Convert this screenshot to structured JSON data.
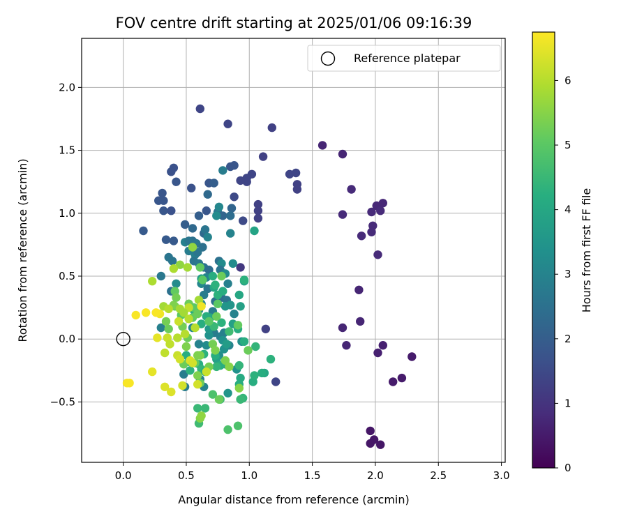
{
  "chart_data": {
    "type": "scatter",
    "title": "FOV centre drift starting at 2025/01/06 09:16:39",
    "xlabel": "Angular distance from reference (arcmin)",
    "ylabel": "Rotation from reference (arcmin)",
    "xlim": [
      -0.33,
      3.03
    ],
    "ylim": [
      -0.98,
      2.39
    ],
    "xticks": [
      0.0,
      0.5,
      1.0,
      1.5,
      2.0,
      2.5,
      3.0
    ],
    "xtick_labels": [
      "0.0",
      "0.5",
      "1.0",
      "1.5",
      "2.0",
      "2.5",
      "3.0"
    ],
    "yticks": [
      -0.5,
      0.0,
      0.5,
      1.0,
      1.5,
      2.0
    ],
    "ytick_labels": [
      "−0.5",
      "0.0",
      "0.5",
      "1.0",
      "1.5",
      "2.0"
    ],
    "grid": true,
    "legend": {
      "location": "upper right",
      "entries": [
        "Reference platepar"
      ]
    },
    "reference_point": {
      "x": 0.0,
      "y": 0.0,
      "label": "Reference platepar"
    },
    "colormap": "viridis",
    "colorbar": {
      "label": "Hours from first FF file",
      "range": [
        0,
        6.75
      ],
      "ticks": [
        0,
        1,
        2,
        3,
        4,
        5,
        6
      ],
      "tick_labels": [
        "0",
        "1",
        "2",
        "3",
        "4",
        "5",
        "6"
      ]
    },
    "points": [
      [
        1.58,
        1.54,
        0.7
      ],
      [
        1.74,
        1.47,
        0.7
      ],
      [
        1.81,
        1.19,
        0.8
      ],
      [
        1.74,
        0.99,
        0.8
      ],
      [
        1.97,
        1.01,
        0.8
      ],
      [
        2.01,
        1.06,
        0.75
      ],
      [
        2.04,
        1.02,
        0.8
      ],
      [
        2.06,
        1.08,
        0.75
      ],
      [
        1.98,
        0.9,
        0.8
      ],
      [
        1.97,
        0.85,
        0.8
      ],
      [
        1.89,
        0.82,
        0.8
      ],
      [
        2.02,
        0.67,
        0.8
      ],
      [
        1.87,
        0.39,
        0.7
      ],
      [
        1.88,
        0.14,
        0.7
      ],
      [
        1.74,
        0.09,
        0.7
      ],
      [
        1.77,
        -0.05,
        0.7
      ],
      [
        2.06,
        -0.05,
        0.6
      ],
      [
        2.02,
        -0.11,
        0.6
      ],
      [
        2.29,
        -0.14,
        0.5
      ],
      [
        2.21,
        -0.31,
        0.5
      ],
      [
        2.14,
        -0.34,
        0.5
      ],
      [
        1.96,
        -0.73,
        0.4
      ],
      [
        1.99,
        -0.8,
        0.4
      ],
      [
        1.96,
        -0.83,
        0.4
      ],
      [
        2.04,
        -0.84,
        0.4
      ],
      [
        0.61,
        1.83,
        1.4
      ],
      [
        0.83,
        1.71,
        1.4
      ],
      [
        1.18,
        1.68,
        1.3
      ],
      [
        1.11,
        1.45,
        1.3
      ],
      [
        1.37,
        1.32,
        1.4
      ],
      [
        1.32,
        1.31,
        1.4
      ],
      [
        1.38,
        1.23,
        1.3
      ],
      [
        1.38,
        1.19,
        1.3
      ],
      [
        1.02,
        1.31,
        1.4
      ],
      [
        0.98,
        1.28,
        1.4
      ],
      [
        0.98,
        1.25,
        1.4
      ],
      [
        0.93,
        1.26,
        1.4
      ],
      [
        1.07,
        1.07,
        1.3
      ],
      [
        1.07,
        1.02,
        1.3
      ],
      [
        1.07,
        0.96,
        1.3
      ],
      [
        0.95,
        0.94,
        1.5
      ],
      [
        0.88,
        1.13,
        1.5
      ],
      [
        0.93,
        0.57,
        1.1
      ],
      [
        1.13,
        0.08,
        1.3
      ],
      [
        1.21,
        -0.34,
        1.4
      ],
      [
        0.88,
        1.38,
        1.8
      ],
      [
        0.85,
        1.37,
        1.8
      ],
      [
        0.4,
        1.36,
        1.7
      ],
      [
        0.38,
        1.33,
        1.7
      ],
      [
        0.42,
        1.25,
        1.8
      ],
      [
        0.31,
        1.16,
        1.8
      ],
      [
        0.28,
        1.1,
        1.8
      ],
      [
        0.32,
        1.1,
        1.8
      ],
      [
        0.32,
        1.02,
        1.8
      ],
      [
        0.38,
        1.02,
        1.7
      ],
      [
        0.16,
        0.86,
        1.9
      ],
      [
        0.34,
        0.79,
        1.9
      ],
      [
        0.4,
        0.78,
        1.9
      ],
      [
        0.49,
        0.91,
        2.0
      ],
      [
        0.54,
        1.2,
        1.7
      ],
      [
        0.68,
        1.24,
        1.8
      ],
      [
        0.72,
        1.24,
        2.0
      ],
      [
        0.67,
        1.15,
        2.3
      ],
      [
        0.66,
        1.02,
        1.8
      ],
      [
        0.6,
        0.98,
        2.0
      ],
      [
        0.55,
        0.88,
        2.3
      ],
      [
        0.75,
        1.01,
        2.6
      ],
      [
        0.86,
        1.04,
        2.2
      ],
      [
        0.79,
        0.98,
        2.2
      ],
      [
        0.85,
        0.98,
        2.4
      ],
      [
        0.79,
        1.34,
        2.8
      ],
      [
        0.64,
        0.84,
        2.3
      ],
      [
        0.65,
        0.87,
        2.6
      ],
      [
        0.74,
        0.98,
        3.2
      ],
      [
        0.55,
        0.78,
        2.5
      ],
      [
        0.49,
        0.77,
        2.9
      ],
      [
        0.52,
        0.78,
        2.6
      ],
      [
        0.58,
        0.76,
        2.6
      ],
      [
        0.63,
        0.73,
        2.5
      ],
      [
        0.67,
        0.81,
        3.0
      ],
      [
        0.76,
        1.05,
        3.1
      ],
      [
        0.85,
        0.84,
        3.0
      ],
      [
        0.36,
        0.65,
        2.6
      ],
      [
        0.39,
        0.62,
        2.6
      ],
      [
        0.3,
        0.5,
        2.7
      ],
      [
        0.52,
        0.7,
        2.8
      ],
      [
        0.57,
        0.67,
        2.9
      ],
      [
        0.59,
        0.69,
        2.6
      ],
      [
        0.56,
        0.62,
        2.6
      ],
      [
        0.6,
        0.6,
        2.7
      ],
      [
        0.64,
        0.57,
        2.6
      ],
      [
        0.76,
        0.62,
        2.5
      ],
      [
        0.78,
        0.6,
        3.2
      ],
      [
        0.77,
        0.55,
        2.6
      ],
      [
        0.68,
        0.55,
        2.4
      ],
      [
        0.38,
        0.38,
        2.5
      ],
      [
        0.42,
        0.44,
        3.2
      ],
      [
        0.62,
        0.44,
        3.1
      ],
      [
        0.66,
        0.49,
        3.0
      ],
      [
        0.81,
        0.52,
        3.2
      ],
      [
        0.87,
        0.6,
        3.2
      ],
      [
        0.83,
        0.44,
        2.9
      ],
      [
        0.67,
        0.4,
        2.6
      ],
      [
        0.64,
        0.35,
        2.8
      ],
      [
        0.73,
        0.3,
        2.5
      ],
      [
        0.78,
        0.33,
        2.4
      ],
      [
        0.82,
        0.31,
        2.6
      ],
      [
        0.62,
        0.28,
        3.1
      ],
      [
        0.71,
        0.22,
        2.8
      ],
      [
        0.81,
        0.26,
        3.5
      ],
      [
        0.85,
        0.27,
        3.5
      ],
      [
        0.88,
        0.2,
        3.0
      ],
      [
        0.6,
        0.23,
        3.2
      ],
      [
        0.55,
        0.09,
        3.1
      ],
      [
        0.72,
        0.05,
        2.8
      ],
      [
        0.77,
        0.02,
        2.9
      ],
      [
        0.8,
        0.05,
        2.9
      ],
      [
        0.3,
        0.09,
        2.9
      ],
      [
        0.6,
        -0.04,
        3.0
      ],
      [
        0.66,
        -0.05,
        3.2
      ],
      [
        0.68,
        0.03,
        3.4
      ],
      [
        0.79,
        -0.01,
        3.4
      ],
      [
        0.84,
        -0.05,
        3.0
      ],
      [
        0.8,
        -0.08,
        3.4
      ],
      [
        0.94,
        -0.02,
        3.3
      ],
      [
        0.76,
        -0.13,
        3.3
      ],
      [
        0.48,
        -0.28,
        2.8
      ],
      [
        0.49,
        -0.38,
        2.8
      ],
      [
        0.61,
        -0.32,
        2.9
      ],
      [
        0.64,
        -0.38,
        3.0
      ],
      [
        0.83,
        -0.43,
        3.5
      ],
      [
        0.81,
        -0.2,
        3.5
      ],
      [
        0.9,
        -0.24,
        3.4
      ],
      [
        0.93,
        0.26,
        3.8
      ],
      [
        0.96,
        0.46,
        3.8
      ],
      [
        1.04,
        0.86,
        3.9
      ],
      [
        0.92,
        0.35,
        4.0
      ],
      [
        0.62,
        0.48,
        3.8
      ],
      [
        0.72,
        0.41,
        4.0
      ],
      [
        0.71,
        0.5,
        4.2
      ],
      [
        0.73,
        0.43,
        4.3
      ],
      [
        0.75,
        0.35,
        4.3
      ],
      [
        0.79,
        0.38,
        4.2
      ],
      [
        0.96,
        0.47,
        4.3
      ],
      [
        0.68,
        0.08,
        3.6
      ],
      [
        0.69,
        0.17,
        4.0
      ],
      [
        0.78,
        0.13,
        4.3
      ],
      [
        0.87,
        0.12,
        3.8
      ],
      [
        0.66,
        0.18,
        4.2
      ],
      [
        0.56,
        0.23,
        4.2
      ],
      [
        0.62,
        0.12,
        4.2
      ],
      [
        0.72,
        0.1,
        4.5
      ],
      [
        0.82,
        -0.04,
        3.7
      ],
      [
        0.74,
        -0.16,
        3.8
      ],
      [
        0.77,
        -0.21,
        4.2
      ],
      [
        0.74,
        -0.22,
        4.4
      ],
      [
        0.64,
        -0.12,
        4.3
      ],
      [
        0.73,
        -0.13,
        4.2
      ],
      [
        0.6,
        -0.2,
        4.2
      ],
      [
        0.62,
        -0.24,
        4.4
      ],
      [
        0.65,
        -0.26,
        4.1
      ],
      [
        0.5,
        -0.13,
        4.2
      ],
      [
        0.53,
        -0.25,
        4.3
      ],
      [
        0.52,
        -0.18,
        4.4
      ],
      [
        0.93,
        -0.31,
        4.1
      ],
      [
        0.92,
        -0.36,
        4.2
      ],
      [
        1.03,
        -0.34,
        4.2
      ],
      [
        1.04,
        -0.29,
        4.3
      ],
      [
        1.12,
        -0.27,
        4.0
      ],
      [
        1.1,
        -0.27,
        4.2
      ],
      [
        1.17,
        -0.16,
        4.3
      ],
      [
        1.05,
        -0.06,
        4.4
      ],
      [
        0.96,
        -0.02,
        4.2
      ],
      [
        0.91,
        0.08,
        4.2
      ],
      [
        0.84,
        0.06,
        4.6
      ],
      [
        0.92,
        -0.21,
        4.4
      ],
      [
        0.95,
        -0.47,
        4.4
      ],
      [
        0.93,
        -0.48,
        4.5
      ],
      [
        0.77,
        -0.48,
        4.6
      ],
      [
        0.59,
        -0.55,
        4.5
      ],
      [
        0.65,
        -0.55,
        4.5
      ],
      [
        0.6,
        -0.67,
        4.6
      ],
      [
        0.71,
        -0.44,
        4.8
      ],
      [
        0.83,
        -0.72,
        4.8
      ],
      [
        0.91,
        -0.69,
        4.8
      ],
      [
        0.41,
        0.38,
        5.1
      ],
      [
        0.41,
        0.26,
        5.2
      ],
      [
        0.46,
        0.19,
        5.0
      ],
      [
        0.52,
        0.28,
        5.2
      ],
      [
        0.56,
        0.25,
        5.0
      ],
      [
        0.61,
        0.57,
        5.1
      ],
      [
        0.63,
        0.47,
        5.0
      ],
      [
        0.78,
        0.5,
        5.2
      ],
      [
        0.75,
        0.28,
        5.0
      ],
      [
        0.55,
        0.17,
        5.1
      ],
      [
        0.59,
        0.2,
        5.2
      ],
      [
        0.68,
        0.14,
        5.0
      ],
      [
        0.74,
        0.18,
        5.2
      ],
      [
        0.71,
        -0.04,
        5.3
      ],
      [
        0.73,
        -0.09,
        5.4
      ],
      [
        0.99,
        -0.09,
        5.2
      ],
      [
        0.91,
        0.11,
        5.1
      ],
      [
        0.68,
        -0.22,
        5.3
      ],
      [
        0.57,
        -0.19,
        5.1
      ],
      [
        0.48,
        -0.2,
        5.2
      ],
      [
        0.59,
        -0.29,
        5.4
      ],
      [
        0.61,
        -0.35,
        5.2
      ],
      [
        0.76,
        -0.48,
        5.2
      ],
      [
        0.4,
        0.27,
        5.4
      ],
      [
        0.42,
        0.33,
        5.3
      ],
      [
        0.34,
        0.14,
        5.3
      ],
      [
        0.36,
        0.08,
        5.2
      ],
      [
        0.47,
        0.1,
        5.3
      ],
      [
        0.5,
        -0.06,
        5.4
      ],
      [
        0.51,
        0.01,
        5.2
      ],
      [
        0.59,
        -0.13,
        5.4
      ],
      [
        0.61,
        -0.13,
        5.4
      ],
      [
        0.81,
        -0.17,
        5.4
      ],
      [
        0.84,
        -0.22,
        5.5
      ],
      [
        0.92,
        -0.39,
        5.5
      ],
      [
        0.61,
        -0.63,
        5.5
      ],
      [
        0.62,
        -0.61,
        5.6
      ],
      [
        0.55,
        0.73,
        5.6
      ],
      [
        0.45,
        0.59,
        5.6
      ],
      [
        0.51,
        0.57,
        5.8
      ],
      [
        0.4,
        0.56,
        5.9
      ],
      [
        0.23,
        0.46,
        5.9
      ],
      [
        0.32,
        0.26,
        5.8
      ],
      [
        0.36,
        0.24,
        6.0
      ],
      [
        0.45,
        0.24,
        5.8
      ],
      [
        0.52,
        0.25,
        6.1
      ],
      [
        0.6,
        0.31,
        5.8
      ],
      [
        0.48,
        0.21,
        5.8
      ],
      [
        0.57,
        0.09,
        6.0
      ],
      [
        0.49,
        0.04,
        6.0
      ],
      [
        0.43,
        0.01,
        6.0
      ],
      [
        0.35,
        0.01,
        6.2
      ],
      [
        0.37,
        -0.04,
        6.1
      ],
      [
        0.44,
        0.14,
        6.2
      ],
      [
        0.52,
        0.16,
        6.0
      ],
      [
        0.33,
        -0.11,
        6.1
      ],
      [
        0.43,
        -0.13,
        6.2
      ],
      [
        0.45,
        -0.16,
        6.3
      ],
      [
        0.53,
        -0.17,
        6.4
      ],
      [
        0.55,
        -0.19,
        6.3
      ],
      [
        0.66,
        -0.26,
        6.2
      ],
      [
        0.47,
        -0.37,
        6.3
      ],
      [
        0.59,
        -0.36,
        6.3
      ],
      [
        0.33,
        -0.38,
        6.4
      ],
      [
        0.38,
        -0.42,
        6.4
      ],
      [
        0.23,
        -0.26,
        6.5
      ],
      [
        0.27,
        0.01,
        6.5
      ],
      [
        0.29,
        0.2,
        6.6
      ],
      [
        0.26,
        0.21,
        6.7
      ],
      [
        0.18,
        0.21,
        6.7
      ],
      [
        0.1,
        0.19,
        6.7
      ],
      [
        0.05,
        -0.35,
        6.7
      ],
      [
        0.03,
        -0.35,
        6.7
      ],
      [
        0.62,
        0.26,
        6.6
      ]
    ]
  }
}
